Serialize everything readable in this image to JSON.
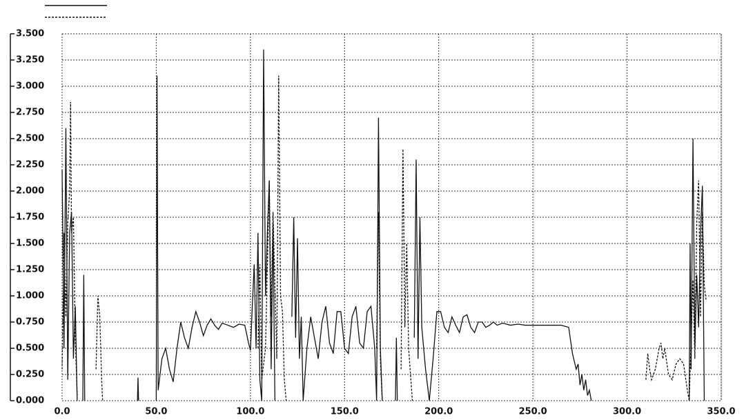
{
  "chart_data": {
    "type": "line",
    "xlim": [
      0,
      350
    ],
    "xticks": [
      {
        "value": 0,
        "label": "0.0"
      },
      {
        "value": 50,
        "label": "50.0"
      },
      {
        "value": 100,
        "label": "100.0"
      },
      {
        "value": 150,
        "label": "150.0"
      },
      {
        "value": 200,
        "label": "200.0"
      },
      {
        "value": 250,
        "label": "250.0"
      },
      {
        "value": 300,
        "label": "300.0"
      },
      {
        "value": 350,
        "label": "350.0"
      }
    ],
    "ylim": [
      0,
      3.5
    ],
    "yticks": [
      {
        "value": 0,
        "label": "0.000"
      },
      {
        "value": 0.25,
        "label": "0.250"
      },
      {
        "value": 0.5,
        "label": "0.500"
      },
      {
        "value": 0.75,
        "label": "0.750"
      },
      {
        "value": 1,
        "label": "1.000"
      },
      {
        "value": 1.25,
        "label": "1.250"
      },
      {
        "value": 1.5,
        "label": "1.500"
      },
      {
        "value": 1.75,
        "label": "1.750"
      },
      {
        "value": 2,
        "label": "2.000"
      },
      {
        "value": 2.25,
        "label": "2.250"
      },
      {
        "value": 2.5,
        "label": "2.500"
      },
      {
        "value": 2.75,
        "label": "2.750"
      },
      {
        "value": 3,
        "label": "3.000"
      },
      {
        "value": 3.25,
        "label": "3.250"
      },
      {
        "value": 3.5,
        "label": "3.500"
      }
    ],
    "grid": true,
    "legend": "top-left",
    "series": [
      {
        "color": "#111111",
        "style": "solid",
        "x": [
          0,
          1,
          2,
          3,
          4,
          5,
          6,
          7,
          8,
          null,
          11,
          11.5,
          12,
          null,
          40,
          40.3,
          40.6,
          null,
          50,
          50.4,
          51,
          53,
          55,
          57,
          59,
          61,
          63,
          65,
          67,
          69,
          71,
          73,
          75,
          77,
          79,
          81,
          83,
          85,
          88,
          91,
          94,
          97,
          99,
          100,
          101,
          102,
          103,
          104,
          105,
          106,
          107,
          108,
          109,
          110,
          111,
          112,
          113,
          null,
          122,
          123,
          124,
          125,
          126,
          127,
          128,
          130,
          132,
          134,
          136,
          138,
          140,
          142,
          144,
          146,
          148,
          150,
          152,
          154,
          156,
          158,
          160,
          162,
          164,
          166,
          167,
          168,
          169,
          170,
          null,
          177,
          177.5,
          178,
          null,
          187,
          188,
          189,
          190,
          191,
          193,
          195,
          197,
          199,
          201,
          203,
          205,
          207,
          209,
          211,
          213,
          215,
          217,
          219,
          221,
          223,
          225,
          227,
          229,
          231,
          234,
          238,
          242,
          246,
          250,
          255,
          260,
          265,
          269,
          271,
          273,
          274,
          275,
          276,
          277,
          278,
          279,
          280,
          281,
          null,
          333,
          333.5,
          334,
          335,
          336,
          337,
          338,
          339,
          340,
          341
        ],
        "values": [
          2.2,
          0.5,
          2.6,
          0.2,
          1.6,
          1.8,
          0.4,
          0.9,
          0,
          null,
          0,
          1.2,
          0,
          null,
          0,
          0.22,
          0,
          null,
          0,
          3.1,
          0.1,
          0.4,
          0.5,
          0.3,
          0.18,
          0.5,
          0.75,
          0.6,
          0.5,
          0.7,
          0.85,
          0.75,
          0.62,
          0.72,
          0.78,
          0.72,
          0.68,
          0.74,
          0.72,
          0.7,
          0.73,
          0.72,
          0.55,
          0.48,
          0.9,
          1.3,
          0.5,
          1.6,
          0.2,
          0,
          3.35,
          1.0,
          1.6,
          2.1,
          0.3,
          1.7,
          0,
          null,
          0.8,
          1.75,
          0.6,
          1.55,
          0.4,
          0.8,
          0,
          0.5,
          0.8,
          0.6,
          0.4,
          0.75,
          0.9,
          0.55,
          0.45,
          0.85,
          0.85,
          0.5,
          0.45,
          0.8,
          0.9,
          0.55,
          0.5,
          0.85,
          0.9,
          0.5,
          0,
          2.7,
          0.5,
          0,
          null,
          0,
          0.6,
          0,
          null,
          0.6,
          2.3,
          0.4,
          1.75,
          0.7,
          0.3,
          0,
          0.4,
          0.85,
          0.85,
          0.7,
          0.65,
          0.8,
          0.72,
          0.65,
          0.8,
          0.82,
          0.7,
          0.65,
          0.75,
          0.75,
          0.7,
          0.72,
          0.75,
          0.72,
          0.74,
          0.72,
          0.73,
          0.72,
          0.72,
          0.72,
          0.72,
          0.72,
          0.7,
          0.45,
          0.3,
          0.35,
          0.15,
          0.25,
          0.1,
          0.2,
          0.05,
          0.1,
          0,
          null,
          0,
          1.5,
          0.3,
          2.5,
          0.5,
          1.2,
          0.7,
          1.6,
          2.05,
          0
        ]
      },
      {
        "color": "#111111",
        "style": "dashed",
        "x": [
          0,
          1,
          2,
          3,
          4,
          4.5,
          5,
          6,
          7,
          8,
          null,
          18,
          19,
          20,
          21,
          21.5,
          null,
          104,
          105,
          106,
          108,
          110,
          111,
          112,
          114,
          115,
          116,
          117,
          118,
          119,
          null,
          167,
          168,
          169,
          170,
          null,
          180,
          181,
          182,
          183,
          184,
          186,
          null,
          310,
          311,
          312,
          313,
          315,
          317,
          318,
          319,
          320,
          322,
          324,
          326,
          328,
          330,
          332,
          333,
          335,
          336,
          337,
          338,
          339,
          340,
          341,
          342
        ],
        "values": [
          0.3,
          1.6,
          0.8,
          1.7,
          2.0,
          2.85,
          1.6,
          1.75,
          0.6,
          0.05,
          null,
          0.3,
          1.0,
          0.8,
          0.2,
          0,
          null,
          0.5,
          1.3,
          0.2,
          0.5,
          2.1,
          0.8,
          1.8,
          0.4,
          3.1,
          1.0,
          0.85,
          0.2,
          0,
          null,
          0.5,
          1.8,
          0.4,
          0,
          null,
          0.3,
          2.4,
          0.7,
          1.5,
          0.5,
          0,
          null,
          0.2,
          0.45,
          0.3,
          0.2,
          0.3,
          0.5,
          0.55,
          0.4,
          0.5,
          0.25,
          0.2,
          0.35,
          0.4,
          0.35,
          0.1,
          0,
          1.15,
          0.4,
          1.7,
          2.1,
          0.8,
          1.8,
          1.1,
          0.95
        ]
      }
    ]
  }
}
